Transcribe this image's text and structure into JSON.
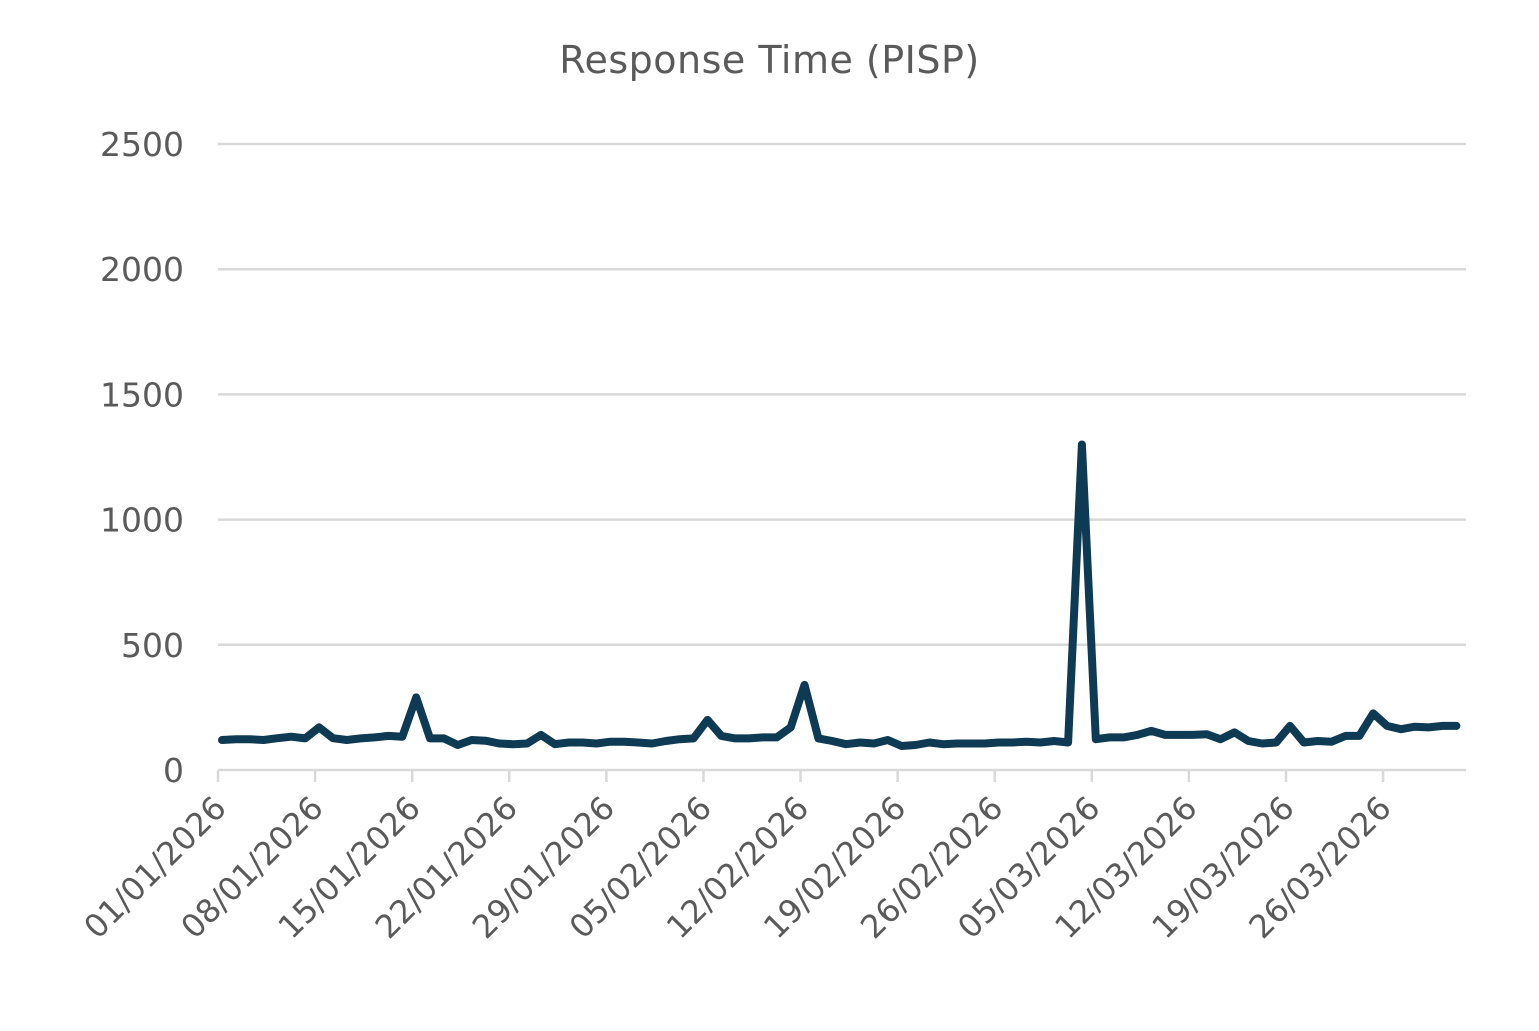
{
  "chart_data": {
    "type": "line",
    "title": "Response Time (PISP)",
    "xlabel": "",
    "ylabel": "",
    "ylim": [
      0,
      2500
    ],
    "yticks": [
      0,
      500,
      1000,
      1500,
      2000,
      2500
    ],
    "grid": true,
    "legend": "none",
    "colors": {
      "line": "#0e3a53",
      "grid": "#d9d9d9",
      "text": "#5a5a5a"
    },
    "x_start": "01/01/2026",
    "x_end": "31/03/2026",
    "xtick_labels": [
      "01/01/2026",
      "08/01/2026",
      "15/01/2026",
      "22/01/2026",
      "29/01/2026",
      "05/02/2026",
      "12/02/2026",
      "19/02/2026",
      "26/02/2026",
      "05/03/2026",
      "12/03/2026",
      "19/03/2026",
      "26/03/2026"
    ],
    "series": [
      {
        "values": [
          120,
          123,
          123,
          120,
          127,
          133,
          126,
          170,
          127,
          120,
          126,
          130,
          136,
          133,
          290,
          126,
          126,
          100,
          120,
          117,
          106,
          103,
          106,
          140,
          103,
          110,
          110,
          106,
          113,
          113,
          110,
          106,
          116,
          123,
          126,
          200,
          136,
          126,
          126,
          130,
          130,
          170,
          340,
          126,
          116,
          103,
          110,
          106,
          120,
          96,
          100,
          110,
          103,
          106,
          106,
          106,
          110,
          110,
          113,
          110,
          116,
          110,
          1300,
          123,
          130,
          130,
          140,
          156,
          140,
          140,
          140,
          143,
          123,
          150,
          116,
          106,
          110,
          176,
          110,
          116,
          113,
          136,
          136,
          226,
          176,
          163,
          173,
          170,
          176,
          176
        ]
      }
    ]
  }
}
